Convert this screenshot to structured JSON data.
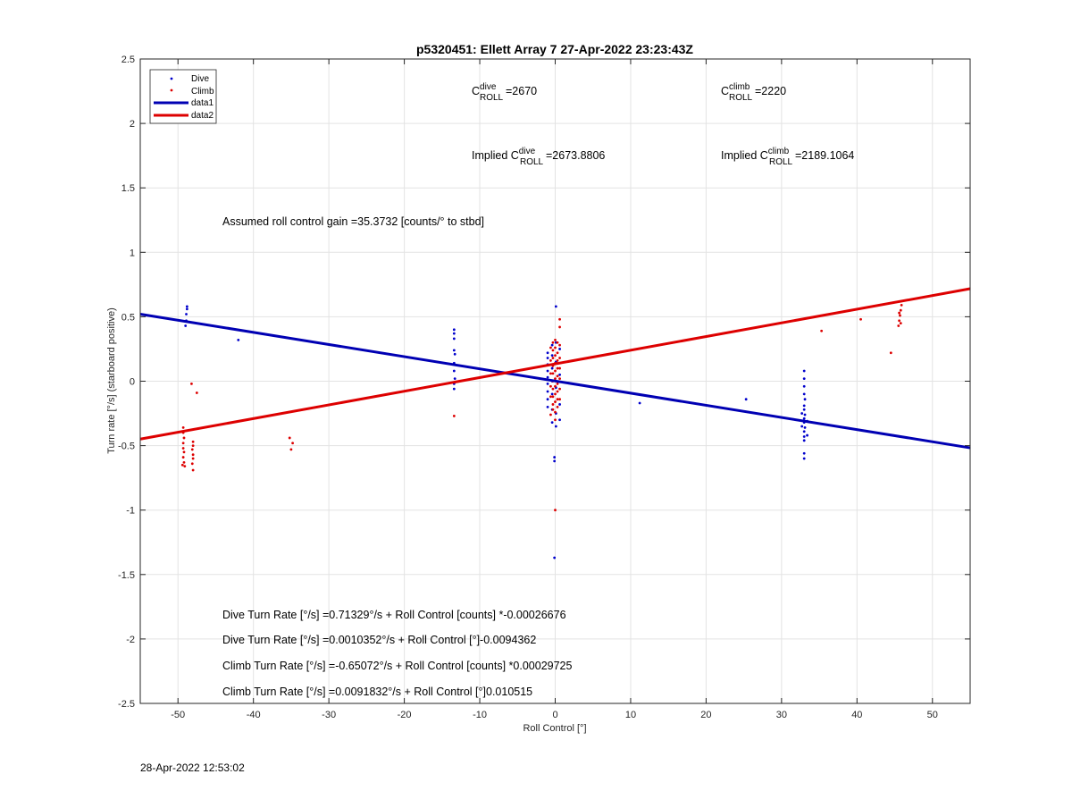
{
  "chart_data": {
    "type": "scatter",
    "title": "p5320451: Ellett Array 7 27-Apr-2022 23:23:43Z",
    "xlabel": "Roll Control [°]",
    "ylabel": "Turn rate [°/s] (starboard positive)",
    "xlim": [
      -55,
      55
    ],
    "ylim": [
      -2.5,
      2.5
    ],
    "xticks": [
      -50,
      -40,
      -30,
      -20,
      -10,
      0,
      10,
      20,
      30,
      40,
      50
    ],
    "yticks": [
      -2.5,
      -2,
      -1.5,
      -1,
      -0.5,
      0,
      0.5,
      1,
      1.5,
      2,
      2.5
    ],
    "xtick_labels": [
      "-50",
      "-40",
      "-30",
      "-20",
      "-10",
      "0",
      "10",
      "20",
      "30",
      "40",
      "50"
    ],
    "ytick_labels": [
      "-2.5",
      "-2",
      "-1.5",
      "-1",
      "-0.5",
      "0",
      "0.5",
      "1",
      "1.5",
      "2",
      "2.5"
    ],
    "grid": true,
    "legend_position": "top-left",
    "series": [
      {
        "name": "Dive",
        "kind": "scatter",
        "color": "#0000cc",
        "points": [
          [
            -48.8,
            0.58
          ],
          [
            -48.8,
            0.56
          ],
          [
            -48.9,
            0.52
          ],
          [
            -48.9,
            0.47
          ],
          [
            -49.0,
            0.43
          ],
          [
            -42.0,
            0.32
          ],
          [
            -13.4,
            0.4
          ],
          [
            -13.4,
            0.37
          ],
          [
            -13.4,
            0.33
          ],
          [
            -13.4,
            0.24
          ],
          [
            -13.3,
            0.21
          ],
          [
            -13.4,
            0.14
          ],
          [
            -13.4,
            0.08
          ],
          [
            -13.3,
            0.02
          ],
          [
            -13.4,
            -0.02
          ],
          [
            -13.4,
            -0.06
          ],
          [
            -1.0,
            0.22
          ],
          [
            -1.0,
            0.18
          ],
          [
            -1.0,
            0.13
          ],
          [
            -1.0,
            0.08
          ],
          [
            -1.0,
            0.03
          ],
          [
            -1.0,
            -0.02
          ],
          [
            -1.0,
            -0.08
          ],
          [
            -1.0,
            -0.14
          ],
          [
            -1.0,
            -0.2
          ],
          [
            -0.4,
            0.28
          ],
          [
            -0.4,
            0.2
          ],
          [
            -0.4,
            0.1
          ],
          [
            -0.4,
            0.0
          ],
          [
            -0.4,
            -0.1
          ],
          [
            -0.4,
            -0.22
          ],
          [
            -0.4,
            -0.32
          ],
          [
            0.1,
            0.58
          ],
          [
            0.1,
            0.3
          ],
          [
            0.1,
            0.15
          ],
          [
            0.1,
            -0.05
          ],
          [
            0.1,
            -0.25
          ],
          [
            0.1,
            -0.35
          ],
          [
            0.6,
            0.25
          ],
          [
            0.6,
            0.05
          ],
          [
            0.6,
            -0.18
          ],
          [
            0.6,
            -0.3
          ],
          [
            -0.1,
            -0.59
          ],
          [
            -0.1,
            -0.62
          ],
          [
            -0.1,
            -1.37
          ],
          [
            11.2,
            -0.17
          ],
          [
            25.3,
            -0.14
          ],
          [
            33.0,
            0.08
          ],
          [
            33.0,
            0.02
          ],
          [
            33.0,
            -0.04
          ],
          [
            33.0,
            -0.1
          ],
          [
            33.1,
            -0.14
          ],
          [
            33.0,
            -0.19
          ],
          [
            33.0,
            -0.22
          ],
          [
            33.1,
            -0.26
          ],
          [
            33.0,
            -0.29
          ],
          [
            33.0,
            -0.32
          ],
          [
            33.1,
            -0.36
          ],
          [
            33.0,
            -0.39
          ],
          [
            33.0,
            -0.43
          ],
          [
            33.0,
            -0.46
          ],
          [
            33.0,
            -0.56
          ],
          [
            33.0,
            -0.6
          ],
          [
            33.4,
            -0.31
          ],
          [
            32.7,
            -0.25
          ],
          [
            33.4,
            -0.42
          ],
          [
            32.7,
            -0.35
          ]
        ]
      },
      {
        "name": "Climb",
        "kind": "scatter",
        "color": "#dd0000",
        "points": [
          [
            -49.3,
            -0.36
          ],
          [
            -49.3,
            -0.4
          ],
          [
            -49.2,
            -0.44
          ],
          [
            -49.3,
            -0.48
          ],
          [
            -49.3,
            -0.52
          ],
          [
            -49.2,
            -0.55
          ],
          [
            -49.3,
            -0.59
          ],
          [
            -49.2,
            -0.63
          ],
          [
            -49.4,
            -0.65
          ],
          [
            -49.1,
            -0.66
          ],
          [
            -48.2,
            -0.02
          ],
          [
            -47.5,
            -0.09
          ],
          [
            -48.0,
            -0.47
          ],
          [
            -48.0,
            -0.5
          ],
          [
            -48.1,
            -0.53
          ],
          [
            -48.0,
            -0.57
          ],
          [
            -48.0,
            -0.6
          ],
          [
            -48.1,
            -0.64
          ],
          [
            -48.0,
            -0.69
          ],
          [
            -35.2,
            -0.44
          ],
          [
            -34.8,
            -0.48
          ],
          [
            -35.0,
            -0.53
          ],
          [
            -13.4,
            -0.27
          ],
          [
            -0.3,
            0.3
          ],
          [
            -0.3,
            0.24
          ],
          [
            -0.3,
            0.18
          ],
          [
            -0.3,
            0.12
          ],
          [
            -0.3,
            0.06
          ],
          [
            -0.3,
            0.0
          ],
          [
            -0.3,
            -0.06
          ],
          [
            -0.3,
            -0.12
          ],
          [
            -0.3,
            -0.18
          ],
          [
            -0.3,
            -0.22
          ],
          [
            0.0,
            0.32
          ],
          [
            0.0,
            0.26
          ],
          [
            0.0,
            0.2
          ],
          [
            0.0,
            0.14
          ],
          [
            0.0,
            0.08
          ],
          [
            0.0,
            0.02
          ],
          [
            0.0,
            -0.04
          ],
          [
            0.0,
            -0.1
          ],
          [
            0.0,
            -0.16
          ],
          [
            0.0,
            -0.24
          ],
          [
            0.0,
            -0.3
          ],
          [
            0.3,
            0.3
          ],
          [
            0.3,
            0.22
          ],
          [
            0.3,
            0.16
          ],
          [
            0.3,
            0.1
          ],
          [
            0.3,
            0.04
          ],
          [
            0.3,
            -0.02
          ],
          [
            0.3,
            -0.08
          ],
          [
            0.3,
            -0.14
          ],
          [
            0.3,
            -0.2
          ],
          [
            0.6,
            0.48
          ],
          [
            0.6,
            0.42
          ],
          [
            0.6,
            0.28
          ],
          [
            0.6,
            0.18
          ],
          [
            0.6,
            0.1
          ],
          [
            0.6,
            0.02
          ],
          [
            0.6,
            -0.06
          ],
          [
            0.6,
            -0.14
          ],
          [
            -0.6,
            0.26
          ],
          [
            -0.6,
            0.16
          ],
          [
            -0.6,
            0.06
          ],
          [
            -0.6,
            -0.04
          ],
          [
            -0.6,
            -0.12
          ],
          [
            -0.6,
            -0.26
          ],
          [
            0.0,
            -1.0
          ],
          [
            35.3,
            0.39
          ],
          [
            40.5,
            0.48
          ],
          [
            44.5,
            0.22
          ],
          [
            45.5,
            0.43
          ],
          [
            45.6,
            0.47
          ],
          [
            45.7,
            0.51
          ],
          [
            45.8,
            0.55
          ],
          [
            45.9,
            0.59
          ],
          [
            45.6,
            0.53
          ],
          [
            45.8,
            0.45
          ]
        ]
      },
      {
        "name": "data1",
        "kind": "line",
        "color": "#0000b3",
        "x": [
          -55,
          55
        ],
        "y": [
          0.5204,
          -0.5171
        ]
      },
      {
        "name": "data2",
        "kind": "line",
        "color": "#dd0000",
        "x": [
          -55,
          55
        ],
        "y": [
          -0.4491,
          0.7175
        ]
      }
    ],
    "annotations": {
      "c_dive": {
        "base": "C",
        "sup": "dive",
        "sub": "ROLL",
        "value": "=2670"
      },
      "c_climb": {
        "base": "C",
        "sup": "climb",
        "sub": "ROLL",
        "value": "=2220"
      },
      "implied_dive": {
        "prefix": "Implied C",
        "sup": "dive",
        "sub": "ROLL",
        "value": "=2673.8806"
      },
      "implied_climb": {
        "prefix": "Implied C",
        "sup": "climb",
        "sub": "ROLL",
        "value": "=2189.1064"
      },
      "gain": "Assumed roll control gain =35.3732 [counts/° to stbd]",
      "eq1": "Dive Turn Rate [°/s] =0.71329°/s + Roll Control [counts] *-0.00026676",
      "eq2": "Dive Turn Rate [°/s] =0.0010352°/s + Roll Control [°]-0.0094362",
      "eq3": "Climb Turn Rate [°/s] =-0.65072°/s + Roll Control [counts] *0.00029725",
      "eq4": "Climb Turn Rate [°/s] =0.0091832°/s + Roll Control [°]0.010515"
    }
  },
  "footer": {
    "timestamp": "28-Apr-2022 12:53:02"
  }
}
